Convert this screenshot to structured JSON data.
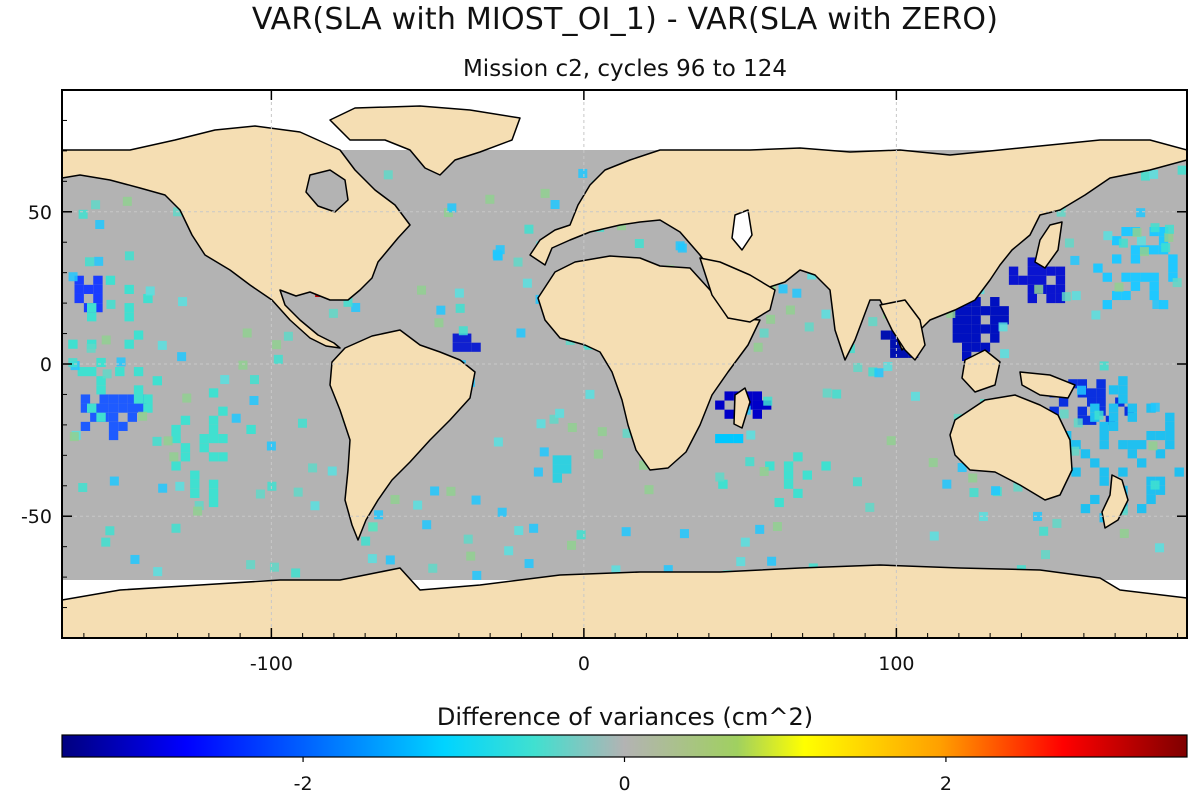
{
  "title": "VAR(SLA with MIOST_OI_1) - VAR(SLA with ZERO)",
  "subtitle": "Mission c2, cycles 96 to 124",
  "map": {
    "lon_range": [
      -167,
      193
    ],
    "lat_range": [
      -90,
      90
    ],
    "x_ticks": [
      {
        "value": -100,
        "label": "-100"
      },
      {
        "value": 0,
        "label": "0"
      },
      {
        "value": 100,
        "label": "100"
      }
    ],
    "y_ticks": [
      {
        "value": 50,
        "label": "50"
      },
      {
        "value": 0,
        "label": "0"
      },
      {
        "value": -50,
        "label": "-50"
      }
    ],
    "gridlines": true,
    "colors": {
      "land": "#f5deb3",
      "ocean_zero": "#b3b3b3",
      "no_data": "#ffffff",
      "coast": "#000000"
    }
  },
  "colorbar": {
    "title": "Difference of variances (cm^2)",
    "range": [
      -3.5,
      3.5
    ],
    "colormap": "jet",
    "ticks": [
      {
        "value": -2,
        "label": "-2"
      },
      {
        "value": 0,
        "label": "0"
      },
      {
        "value": 2,
        "label": "2"
      }
    ]
  }
}
